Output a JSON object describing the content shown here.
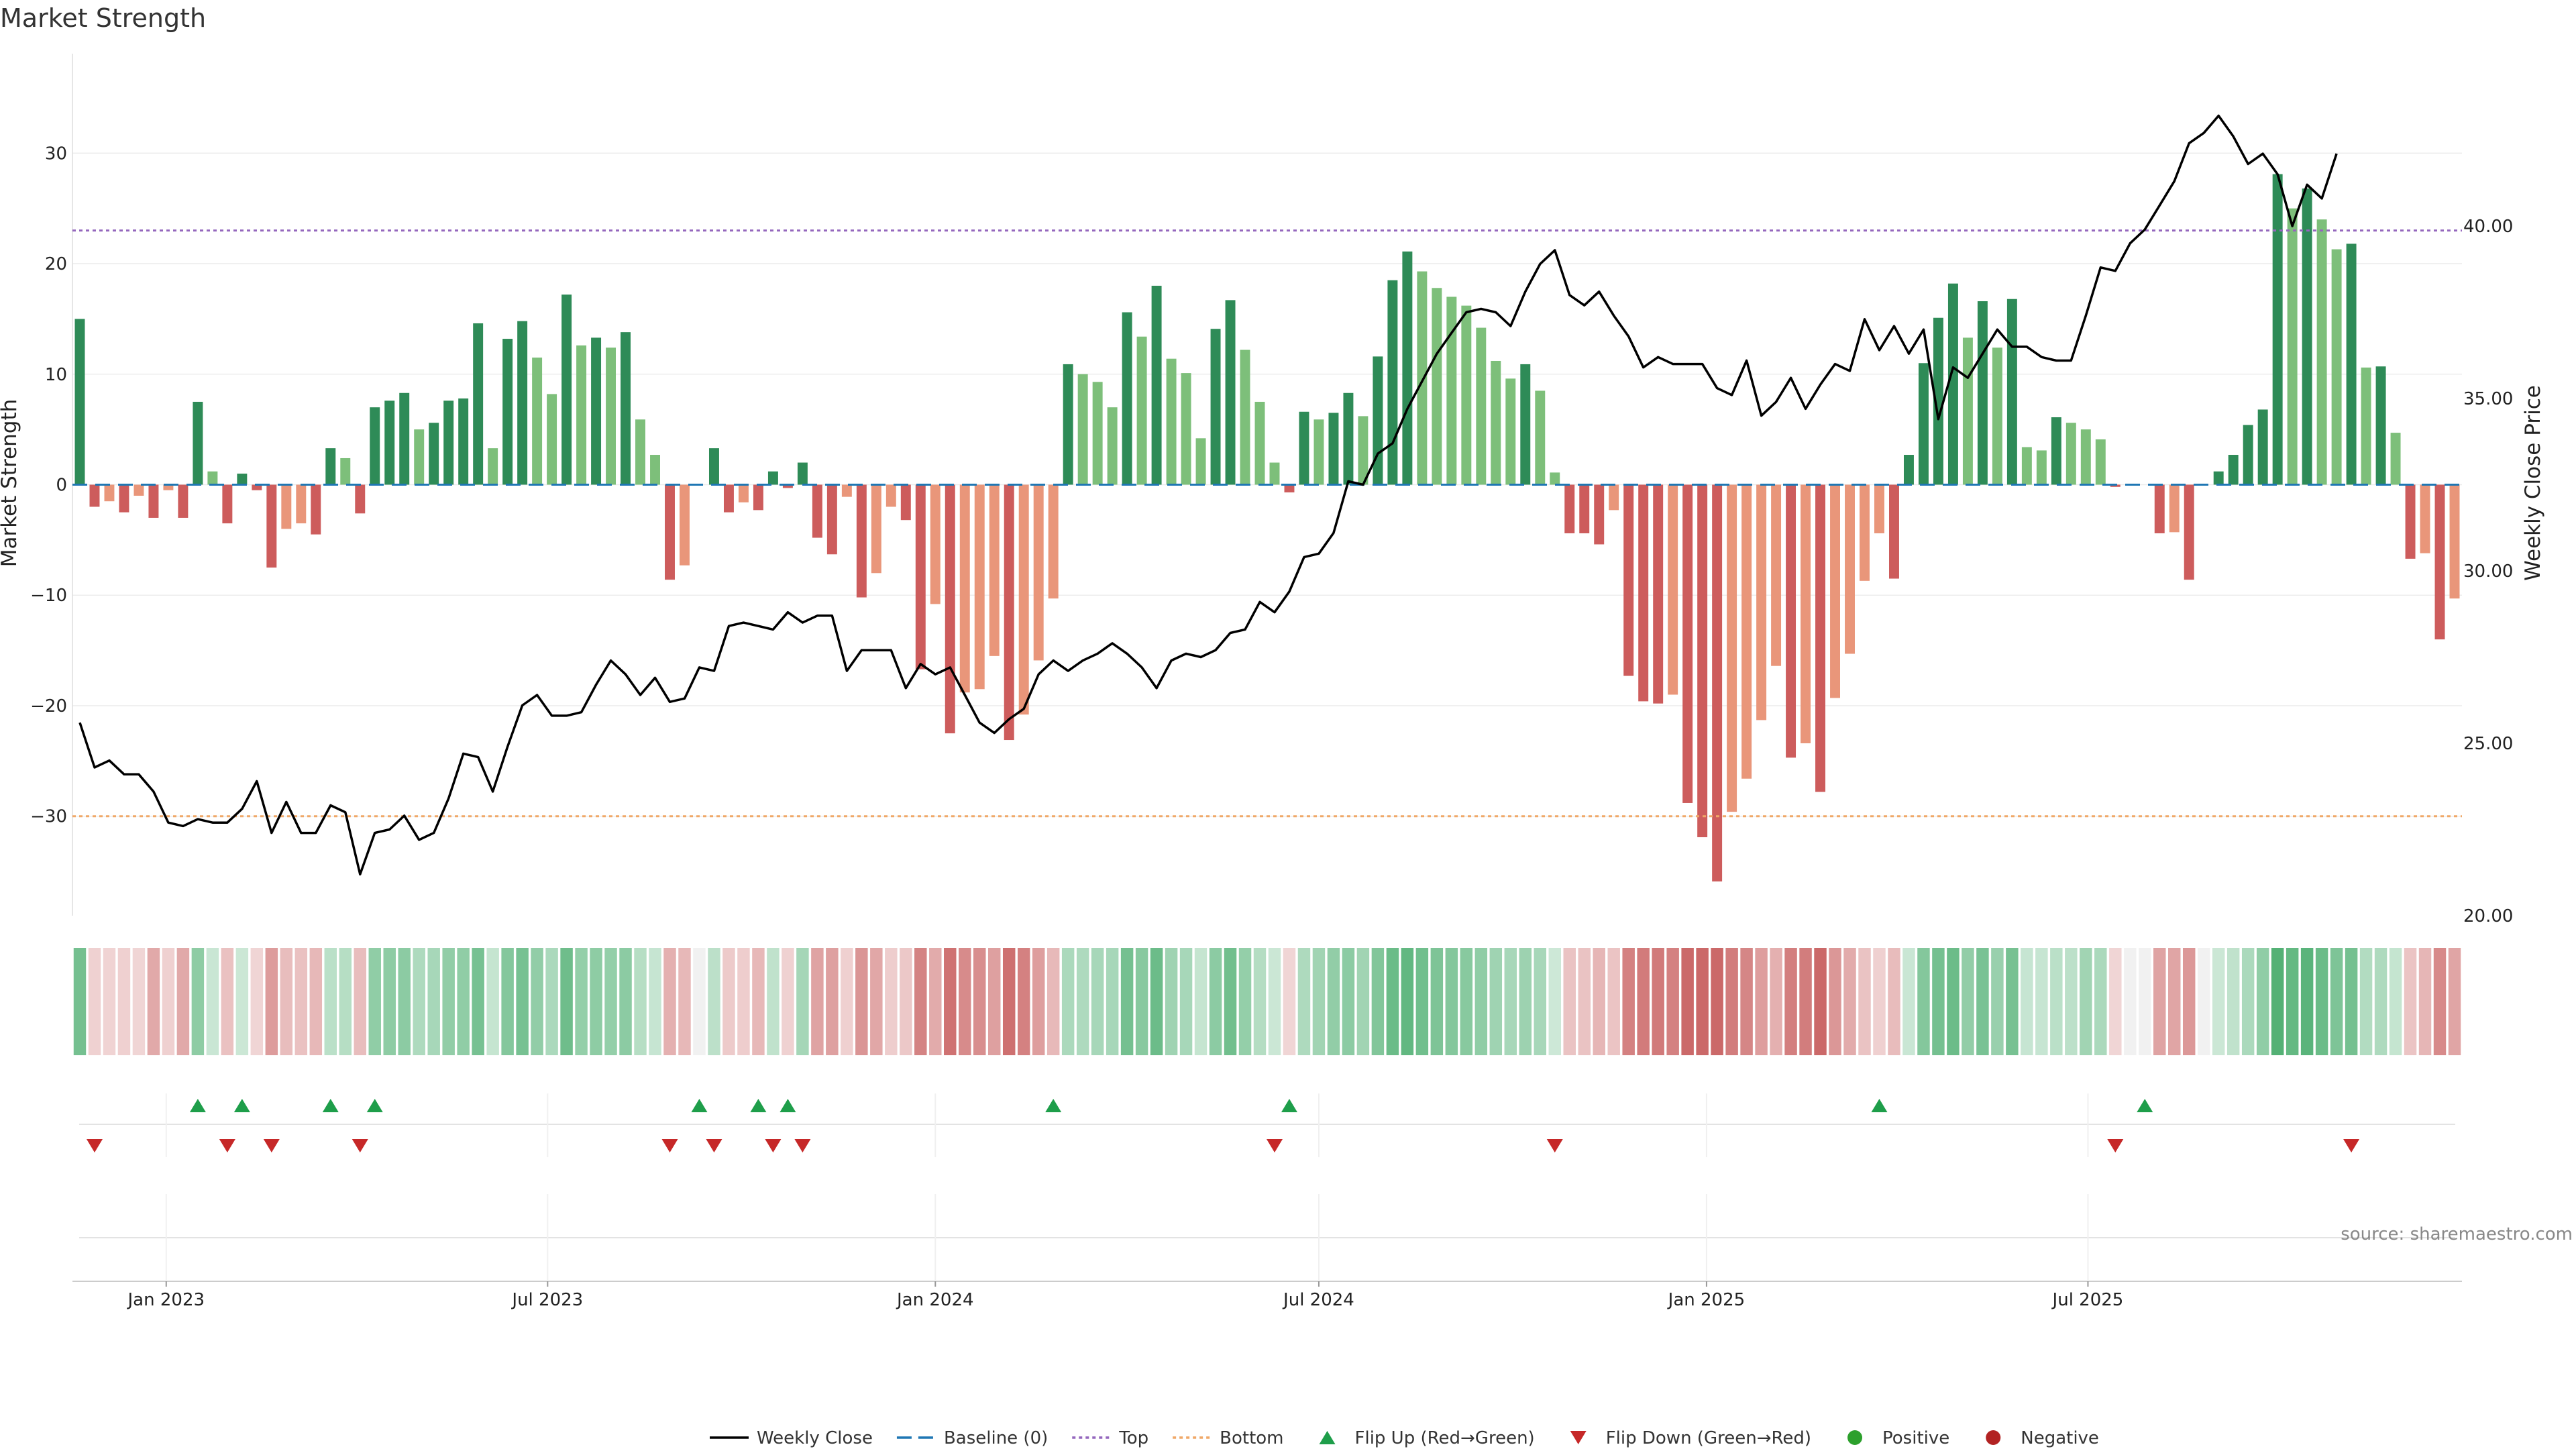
{
  "chart_data": {
    "type": "bar",
    "title": "Market Strength",
    "y_left_label": "Market Strength",
    "y_right_label": "Weekly Close Price",
    "y_left_range": [
      -39,
      39
    ],
    "y_right_range": [
      20,
      45
    ],
    "y_left_ticks": [
      -30,
      -20,
      -10,
      0,
      10,
      20,
      30
    ],
    "y_left_tick_labels": [
      "−30",
      "−20",
      "−10",
      "0",
      "10",
      "20",
      "30"
    ],
    "y_right_ticks": [
      20,
      25,
      30,
      35,
      40
    ],
    "y_right_tick_labels": [
      "20.00",
      "25.00",
      "30.00",
      "35.00",
      "40.00"
    ],
    "x_start": "2022-11-21",
    "x_ticks": [
      {
        "date": "2023-01-01",
        "label": "Jan 2023"
      },
      {
        "date": "2023-07-01",
        "label": "Jul 2023"
      },
      {
        "date": "2024-01-01",
        "label": "Jan 2024"
      },
      {
        "date": "2024-07-01",
        "label": "Jul 2024"
      },
      {
        "date": "2025-01-01",
        "label": "Jan 2025"
      },
      {
        "date": "2025-07-01",
        "label": "Jul 2025"
      }
    ],
    "top_line": 23,
    "bottom_line": -30,
    "bar_values": [
      15,
      -2,
      -1.5,
      -2.5,
      -1,
      -3,
      -0.5,
      -3,
      7.5,
      1.2,
      -3.5,
      1,
      -0.5,
      -7.5,
      -4,
      -3.5,
      -4.5,
      3.3,
      2.4,
      -2.6,
      7,
      7.6,
      8.3,
      5,
      5.6,
      7.6,
      7.8,
      14.6,
      3.3,
      13.2,
      14.8,
      11.5,
      8.2,
      17.2,
      12.6,
      13.3,
      12.4,
      13.8,
      5.9,
      2.7,
      -8.6,
      -7.3,
      0,
      3.3,
      -2.5,
      -1.6,
      -2.3,
      1.2,
      -0.3,
      2,
      -4.8,
      -6.3,
      -1.1,
      -10.2,
      -8,
      -2,
      -3.2,
      -16.7,
      -10.8,
      -22.5,
      -18.8,
      -18.5,
      -15.5,
      -23.1,
      -20.8,
      -15.9,
      -10.3,
      10.9,
      10,
      9.3,
      7,
      15.6,
      13.4,
      18,
      11.4,
      10.1,
      4.2,
      14.1,
      16.7,
      12.2,
      7.5,
      2,
      -0.7,
      6.6,
      5.9,
      6.5,
      8.3,
      6.2,
      11.6,
      18.5,
      21.1,
      19.3,
      17.8,
      17,
      16.2,
      14.2,
      11.2,
      9.6,
      10.9,
      8.5,
      1.1,
      -4.4,
      -4.4,
      -5.4,
      -2.3,
      -17.3,
      -19.6,
      -19.8,
      -19,
      -28.8,
      -31.9,
      -35.9,
      -29.6,
      -26.6,
      -21.3,
      -16.4,
      -24.7,
      -23.4,
      -27.8,
      -19.3,
      -15.3,
      -8.7,
      -4.4,
      -8.5,
      2.7,
      11,
      15.1,
      18.2,
      13.3,
      16.6,
      12.4,
      16.8,
      3.4,
      3.1,
      6.1,
      5.6,
      5,
      4.1,
      -0.2,
      0,
      0,
      -4.4,
      -4.3,
      -8.6,
      0,
      1.2,
      2.7,
      5.4,
      6.8,
      28.1,
      25,
      26.8,
      24,
      21.3,
      21.8,
      10.6,
      10.7,
      4.7,
      -6.7,
      -6.2,
      -14,
      -10.3
    ],
    "price": [
      25.6,
      24.3,
      24.5,
      24.1,
      24.1,
      23.6,
      22.7,
      22.6,
      22.8,
      22.7,
      22.7,
      23.1,
      23.9,
      22.4,
      23.3,
      22.4,
      22.4,
      23.2,
      23.0,
      21.2,
      22.4,
      22.5,
      22.9,
      22.2,
      22.4,
      23.4,
      24.7,
      24.6,
      23.6,
      24.9,
      26.1,
      26.4,
      25.8,
      25.8,
      25.9,
      26.7,
      27.4,
      27.0,
      26.4,
      26.9,
      26.2,
      26.3,
      27.2,
      27.1,
      28.4,
      28.5,
      28.4,
      28.3,
      28.8,
      28.5,
      28.7,
      28.7,
      27.1,
      27.7,
      27.7,
      27.7,
      26.6,
      27.3,
      27.0,
      27.2,
      26.4,
      25.6,
      25.3,
      25.7,
      26.0,
      27.0,
      27.4,
      27.1,
      27.4,
      27.6,
      27.9,
      27.6,
      27.2,
      26.6,
      27.4,
      27.6,
      27.5,
      27.7,
      28.2,
      28.3,
      29.1,
      28.8,
      29.4,
      30.4,
      30.5,
      31.1,
      32.6,
      32.5,
      33.4,
      33.7,
      34.7,
      35.5,
      36.3,
      36.9,
      37.5,
      37.6,
      37.5,
      37.1,
      38.1,
      38.9,
      39.3,
      38.0,
      37.7,
      38.1,
      37.4,
      36.8,
      35.9,
      36.2,
      36.0,
      36.0,
      36.0,
      35.3,
      35.1,
      36.1,
      34.5,
      34.9,
      35.6,
      34.7,
      35.4,
      36.0,
      35.8,
      37.3,
      36.4,
      37.1,
      36.3,
      37.0,
      34.4,
      35.9,
      35.6,
      36.3,
      37.0,
      36.5,
      36.5,
      36.2,
      36.1,
      36.1,
      37.4,
      38.8,
      38.7,
      39.5,
      39.9,
      40.6,
      41.3,
      42.4,
      42.7,
      43.2,
      42.6,
      41.8,
      42.1,
      41.5,
      40.0,
      41.2,
      40.8,
      42.1
    ],
    "flip_up_weeks": [
      8,
      11,
      17,
      20,
      42,
      46,
      48,
      66,
      82,
      122,
      140
    ],
    "flip_down_weeks": [
      1,
      10,
      13,
      19,
      40,
      43,
      47,
      49,
      81,
      100,
      138,
      154
    ],
    "legend": {
      "weekly_close": "Weekly Close",
      "baseline": "Baseline (0)",
      "top": "Top",
      "bottom": "Bottom",
      "flip_up": "Flip Up (Red→Green)",
      "flip_down": "Flip Down (Green→Red)",
      "positive": "Positive",
      "negative": "Negative"
    },
    "source": "source: sharemaestro.com",
    "colors": {
      "pos_dark": "#2e8b57",
      "pos_light": "#7dbf7a",
      "neg_dark": "#cd5c5c",
      "neg_light": "#e9967a",
      "price_line": "#000000",
      "baseline": "#1f77b4",
      "top": "#9467bd",
      "bottom": "#f0a868",
      "flip_up": "#1e9e4a",
      "flip_down": "#c62828",
      "positive": "#2ca02c",
      "negative": "#b22222"
    }
  }
}
